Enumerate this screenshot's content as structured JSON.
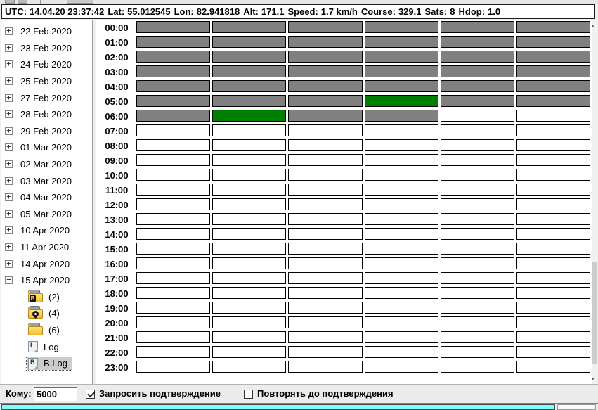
{
  "colors": {
    "cell_gray": "#808080",
    "cell_green": "#008000",
    "cell_empty": "#ffffff",
    "status_cyan": "#80ffff",
    "selection_bg": "#cccccc"
  },
  "gps_bar": {
    "fields": [
      {
        "label": "UTC:",
        "value": "14.04.20 23:37:42"
      },
      {
        "label": "Lat:",
        "value": "55.012545"
      },
      {
        "label": "Lon:",
        "value": "82.941818"
      },
      {
        "label": "Alt:",
        "value": "171.1"
      },
      {
        "label": "Speed:",
        "value": "1.7 km/h"
      },
      {
        "label": "Course:",
        "value": "329.1"
      },
      {
        "label": "Sats:",
        "value": "8"
      },
      {
        "label": "Hdop:",
        "value": "1.0"
      }
    ]
  },
  "tree": {
    "items": [
      {
        "kind": "date",
        "state": "collapsed",
        "label": "22 Feb 2020"
      },
      {
        "kind": "date",
        "state": "collapsed",
        "label": "23 Feb 2020"
      },
      {
        "kind": "date",
        "state": "collapsed",
        "label": "24 Feb 2020"
      },
      {
        "kind": "date",
        "state": "collapsed",
        "label": "25 Feb 2020"
      },
      {
        "kind": "date",
        "state": "collapsed",
        "label": "27 Feb 2020"
      },
      {
        "kind": "date",
        "state": "collapsed",
        "label": "28 Feb 2020"
      },
      {
        "kind": "date",
        "state": "collapsed",
        "label": "29 Feb 2020"
      },
      {
        "kind": "date",
        "state": "collapsed",
        "label": "01 Mar 2020"
      },
      {
        "kind": "date",
        "state": "collapsed",
        "label": "02 Mar 2020"
      },
      {
        "kind": "date",
        "state": "collapsed",
        "label": "03 Mar 2020"
      },
      {
        "kind": "date",
        "state": "collapsed",
        "label": "04 Mar 2020"
      },
      {
        "kind": "date",
        "state": "collapsed",
        "label": "05 Mar 2020"
      },
      {
        "kind": "date",
        "state": "collapsed",
        "label": "10 Apr 2020"
      },
      {
        "kind": "date",
        "state": "collapsed",
        "label": "11 Apr 2020"
      },
      {
        "kind": "date",
        "state": "collapsed",
        "label": "14 Apr 2020"
      },
      {
        "kind": "date",
        "state": "expanded",
        "label": "15 Apr 2020"
      },
      {
        "kind": "folder",
        "badge": "B",
        "label": "(2)"
      },
      {
        "kind": "folder",
        "badge": "pin",
        "label": "(4)"
      },
      {
        "kind": "folder",
        "badge": "",
        "label": "(6)"
      },
      {
        "kind": "file",
        "badge": "L",
        "label": "Log"
      },
      {
        "kind": "file",
        "badge": "B",
        "label": "B.Log",
        "selected": true
      }
    ]
  },
  "schedule": {
    "columns": 6,
    "cell_legend": {
      "G": "gray-filled",
      "N": "green-filled",
      "W": "empty"
    },
    "rows": [
      {
        "time": "00:00",
        "cells": "GGGGGG"
      },
      {
        "time": "01:00",
        "cells": "GGGGGG"
      },
      {
        "time": "02:00",
        "cells": "GGGGGG"
      },
      {
        "time": "03:00",
        "cells": "GGGGGG"
      },
      {
        "time": "04:00",
        "cells": "GGGGGG"
      },
      {
        "time": "05:00",
        "cells": "GGGNGG"
      },
      {
        "time": "06:00",
        "cells": "GNGGWW"
      },
      {
        "time": "07:00",
        "cells": "WWWWWW"
      },
      {
        "time": "08:00",
        "cells": "WWWWWW"
      },
      {
        "time": "09:00",
        "cells": "WWWWWW"
      },
      {
        "time": "10:00",
        "cells": "WWWWWW"
      },
      {
        "time": "11:00",
        "cells": "WWWWWW"
      },
      {
        "time": "12:00",
        "cells": "WWWWWW"
      },
      {
        "time": "13:00",
        "cells": "WWWWWW"
      },
      {
        "time": "14:00",
        "cells": "WWWWWW"
      },
      {
        "time": "15:00",
        "cells": "WWWWWW"
      },
      {
        "time": "16:00",
        "cells": "WWWWWW"
      },
      {
        "time": "17:00",
        "cells": "WWWWWW"
      },
      {
        "time": "18:00",
        "cells": "WWWWWW"
      },
      {
        "time": "19:00",
        "cells": "WWWWWW"
      },
      {
        "time": "20:00",
        "cells": "WWWWWW"
      },
      {
        "time": "21:00",
        "cells": "WWWWWW"
      },
      {
        "time": "22:00",
        "cells": "WWWWWW"
      },
      {
        "time": "23:00",
        "cells": "WWWWWW"
      }
    ]
  },
  "bottom": {
    "to_label": "Кому:",
    "to_value": "5000",
    "confirm_checkbox": {
      "label": "Запросить подтверждение",
      "checked": true
    },
    "repeat_checkbox": {
      "label": "Повторять до подтверждения",
      "checked": false
    }
  }
}
